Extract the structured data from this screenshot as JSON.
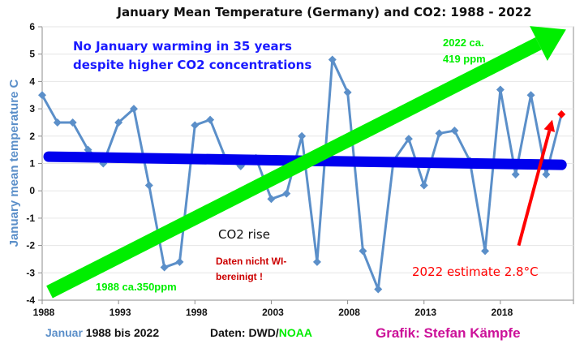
{
  "chart_data": {
    "type": "line",
    "title": "January Mean Temperature (Germany) and CO2: 1988 - 2022",
    "ylabel": "January mean temperature C",
    "xlabel": "",
    "xlim": [
      1988,
      2022
    ],
    "ylim": [
      -4,
      6
    ],
    "grid": true,
    "x_ticks": [
      1988,
      1993,
      1998,
      2003,
      2008,
      2013,
      2018
    ],
    "y_ticks": [
      -4,
      -3,
      -2,
      -1,
      0,
      1,
      2,
      3,
      4,
      5,
      6
    ],
    "series": [
      {
        "name": "January mean temperature",
        "color": "#5b8fc9",
        "x": [
          1988,
          1989,
          1990,
          1991,
          1992,
          1993,
          1994,
          1995,
          1996,
          1997,
          1998,
          1999,
          2000,
          2001,
          2002,
          2003,
          2004,
          2005,
          2006,
          2007,
          2008,
          2009,
          2010,
          2011,
          2012,
          2013,
          2014,
          2015,
          2016,
          2017,
          2018,
          2019,
          2020,
          2021,
          2022
        ],
        "values": [
          3.5,
          2.5,
          2.5,
          1.5,
          1.0,
          2.5,
          3.0,
          0.2,
          -2.8,
          -2.6,
          2.4,
          2.6,
          1.2,
          0.9,
          1.2,
          -0.3,
          -0.1,
          2.0,
          -2.6,
          4.8,
          3.6,
          -2.2,
          -3.6,
          1.1,
          1.9,
          0.2,
          2.1,
          2.2,
          1.1,
          -2.2,
          3.7,
          0.6,
          3.5,
          0.6,
          2.8
        ],
        "highlight_last": {
          "year": 2022,
          "value": 2.8,
          "color": "#ff0000"
        }
      },
      {
        "name": "Linear trend",
        "color": "#0000ee",
        "x": [
          1988,
          2022
        ],
        "values": [
          1.25,
          0.95
        ]
      },
      {
        "name": "CO2 rise arrow",
        "color": "#00ee00",
        "x": [
          1988,
          2022.3
        ],
        "values": [
          -3.7,
          5.9
        ]
      },
      {
        "name": "2022 estimate arrow",
        "color": "#ff0000",
        "x": [
          2019.2,
          2021.4
        ],
        "values": [
          -2.0,
          2.6
        ]
      }
    ],
    "annotations": {
      "headline_line1": "No January warming in 35 years",
      "headline_line2": "despite higher CO2 concentrations",
      "co2_2022_line1": "2022 ca.",
      "co2_2022_line2": "419 ppm",
      "co2_1988": "1988 ca.350ppm",
      "co2_rise": "CO2 rise",
      "wi_line1": "Daten nicht WI-",
      "wi_line2": "bereinigt !",
      "estimate": "2022 estimate 2.8°C"
    },
    "footer": {
      "left_colored": "Januar",
      "left_rest": " 1988 bis 2022",
      "source_prefix": "Daten: DWD/",
      "source_colored": "NOAA",
      "credit": "Grafik: Stefan Kämpfe"
    },
    "colors": {
      "temperature": "#5b8fc9",
      "trend": "#0000ee",
      "co2": "#00ee00",
      "estimate": "#ff0000",
      "headline": "#1a1aff",
      "wi_note": "#cc0000",
      "credit": "#cc1199"
    }
  }
}
